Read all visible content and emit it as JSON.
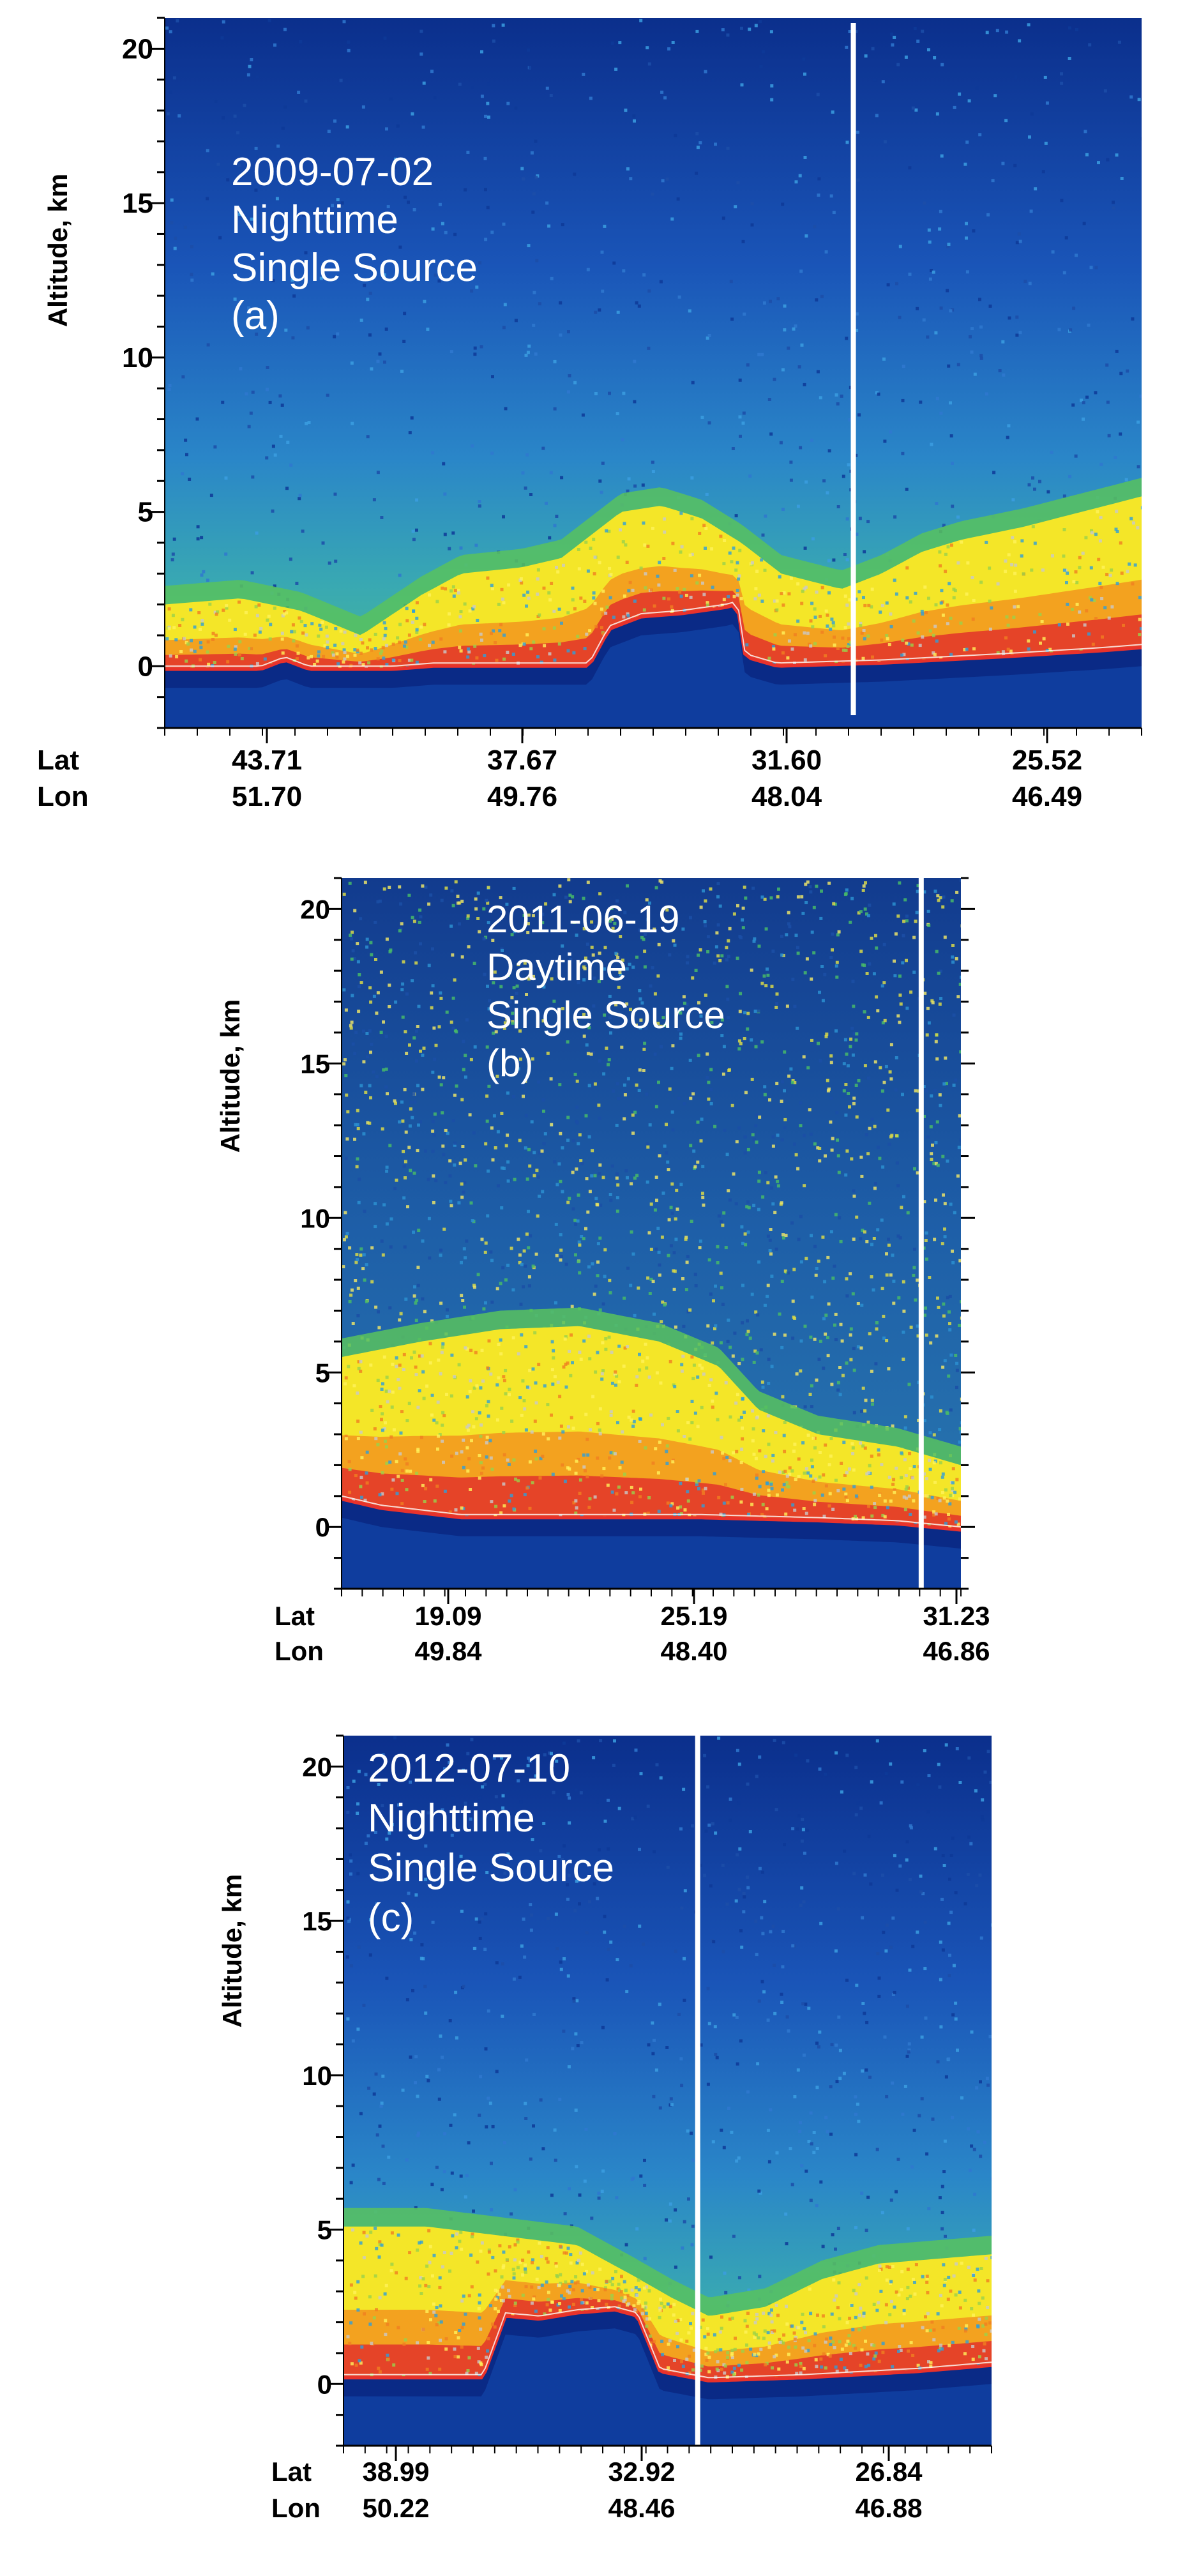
{
  "chart_data": [
    {
      "type": "heatmap",
      "panel_label": "(a)",
      "annotation": [
        "2009-07-02",
        "Nighttime",
        "Single Source",
        "(a)"
      ],
      "ylabel": "Altitude, km",
      "ylim": [
        -2,
        21
      ],
      "yticks": [
        0,
        5,
        10,
        15,
        20
      ],
      "x_row_labels": [
        "Lat",
        "Lon"
      ],
      "xticks": [
        {
          "lat": "43.71",
          "lon": "51.70"
        },
        {
          "lat": "37.67",
          "lon": "49.76"
        },
        {
          "lat": "31.60",
          "lon": "48.04"
        },
        {
          "lat": "25.52",
          "lon": "46.49"
        }
      ],
      "lat_range": [
        46.9,
        22.5
      ],
      "marker_lat": 29.7,
      "surface_profile": [
        [
          46.9,
          -0.1
        ],
        [
          44.5,
          -0.1
        ],
        [
          43.9,
          0.2
        ],
        [
          43.3,
          -0.1
        ],
        [
          41.2,
          -0.1
        ],
        [
          40.2,
          0.0
        ],
        [
          37.5,
          0.0
        ],
        [
          36.3,
          0.0
        ],
        [
          35.8,
          1.2
        ],
        [
          35.0,
          1.6
        ],
        [
          34.0,
          1.7
        ],
        [
          32.9,
          1.9
        ],
        [
          32.6,
          2.0
        ],
        [
          32.4,
          0.3
        ],
        [
          31.6,
          0.0
        ],
        [
          29.0,
          0.1
        ],
        [
          26.0,
          0.3
        ],
        [
          23.5,
          0.5
        ],
        [
          22.5,
          0.6
        ]
      ],
      "aerosol_top": [
        [
          46.9,
          2.0
        ],
        [
          45.0,
          2.2
        ],
        [
          43.5,
          1.8
        ],
        [
          42.0,
          1.0
        ],
        [
          40.5,
          2.3
        ],
        [
          39.5,
          3.0
        ],
        [
          38.0,
          3.2
        ],
        [
          37.0,
          3.5
        ],
        [
          35.5,
          5.0
        ],
        [
          34.5,
          5.2
        ],
        [
          33.5,
          4.8
        ],
        [
          32.5,
          4.0
        ],
        [
          31.5,
          3.0
        ],
        [
          30.0,
          2.5
        ],
        [
          29.0,
          3.0
        ],
        [
          28.0,
          3.7
        ],
        [
          27.0,
          4.1
        ],
        [
          25.5,
          4.5
        ],
        [
          24.0,
          5.0
        ],
        [
          22.5,
          5.5
        ]
      ]
    },
    {
      "type": "heatmap",
      "panel_label": "(b)",
      "annotation": [
        "2011-06-19",
        "Daytime",
        "Single Source",
        "(b)"
      ],
      "ylabel": "Altitude, km",
      "ylim": [
        -2,
        21
      ],
      "yticks": [
        0,
        5,
        10,
        15,
        20
      ],
      "x_row_labels": [
        "Lat",
        "Lon"
      ],
      "xticks": [
        {
          "lat": "19.09",
          "lon": "49.84"
        },
        {
          "lat": "25.19",
          "lon": "48.40"
        },
        {
          "lat": "31.23",
          "lon": "46.86"
        }
      ],
      "lat_range": [
        16.0,
        31.6
      ],
      "marker_lat": 30.6,
      "surface_profile": [
        [
          16.0,
          0.9
        ],
        [
          17.0,
          0.6
        ],
        [
          19.0,
          0.3
        ],
        [
          22.0,
          0.3
        ],
        [
          25.0,
          0.3
        ],
        [
          28.0,
          0.2
        ],
        [
          30.0,
          0.1
        ],
        [
          31.6,
          -0.1
        ]
      ],
      "aerosol_top": [
        [
          16.0,
          5.5
        ],
        [
          18.0,
          6.0
        ],
        [
          20.0,
          6.4
        ],
        [
          22.0,
          6.5
        ],
        [
          24.0,
          6.0
        ],
        [
          25.5,
          5.2
        ],
        [
          26.5,
          3.8
        ],
        [
          28.0,
          3.0
        ],
        [
          30.0,
          2.6
        ],
        [
          31.6,
          2.0
        ]
      ]
    },
    {
      "type": "heatmap",
      "panel_label": "(c)",
      "annotation": [
        "2012-07-10",
        "Nighttime",
        "Single Source",
        "(c)"
      ],
      "ylabel": "Altitude, km",
      "ylim": [
        -2,
        21
      ],
      "yticks": [
        0,
        5,
        10,
        15,
        20
      ],
      "x_row_labels": [
        "Lat",
        "Lon"
      ],
      "xticks": [
        {
          "lat": "38.99",
          "lon": "50.22"
        },
        {
          "lat": "32.92",
          "lon": "48.46"
        },
        {
          "lat": "26.84",
          "lon": "46.88"
        }
      ],
      "lat_range": [
        41.2,
        24.0
      ],
      "marker_lat": 31.8,
      "surface_profile": [
        [
          41.2,
          0.2
        ],
        [
          39.0,
          0.2
        ],
        [
          37.5,
          0.2
        ],
        [
          36.9,
          2.2
        ],
        [
          36.0,
          2.1
        ],
        [
          35.0,
          2.3
        ],
        [
          34.0,
          2.4
        ],
        [
          33.4,
          2.2
        ],
        [
          32.8,
          0.4
        ],
        [
          31.5,
          0.1
        ],
        [
          29.0,
          0.2
        ],
        [
          26.0,
          0.4
        ],
        [
          24.0,
          0.6
        ]
      ],
      "aerosol_top": [
        [
          41.2,
          5.1
        ],
        [
          39.0,
          5.1
        ],
        [
          37.0,
          4.8
        ],
        [
          35.0,
          4.5
        ],
        [
          33.5,
          3.5
        ],
        [
          32.5,
          2.8
        ],
        [
          31.5,
          2.2
        ],
        [
          30.0,
          2.5
        ],
        [
          28.5,
          3.4
        ],
        [
          27.0,
          3.9
        ],
        [
          25.0,
          4.1
        ],
        [
          24.0,
          4.2
        ]
      ]
    }
  ]
}
